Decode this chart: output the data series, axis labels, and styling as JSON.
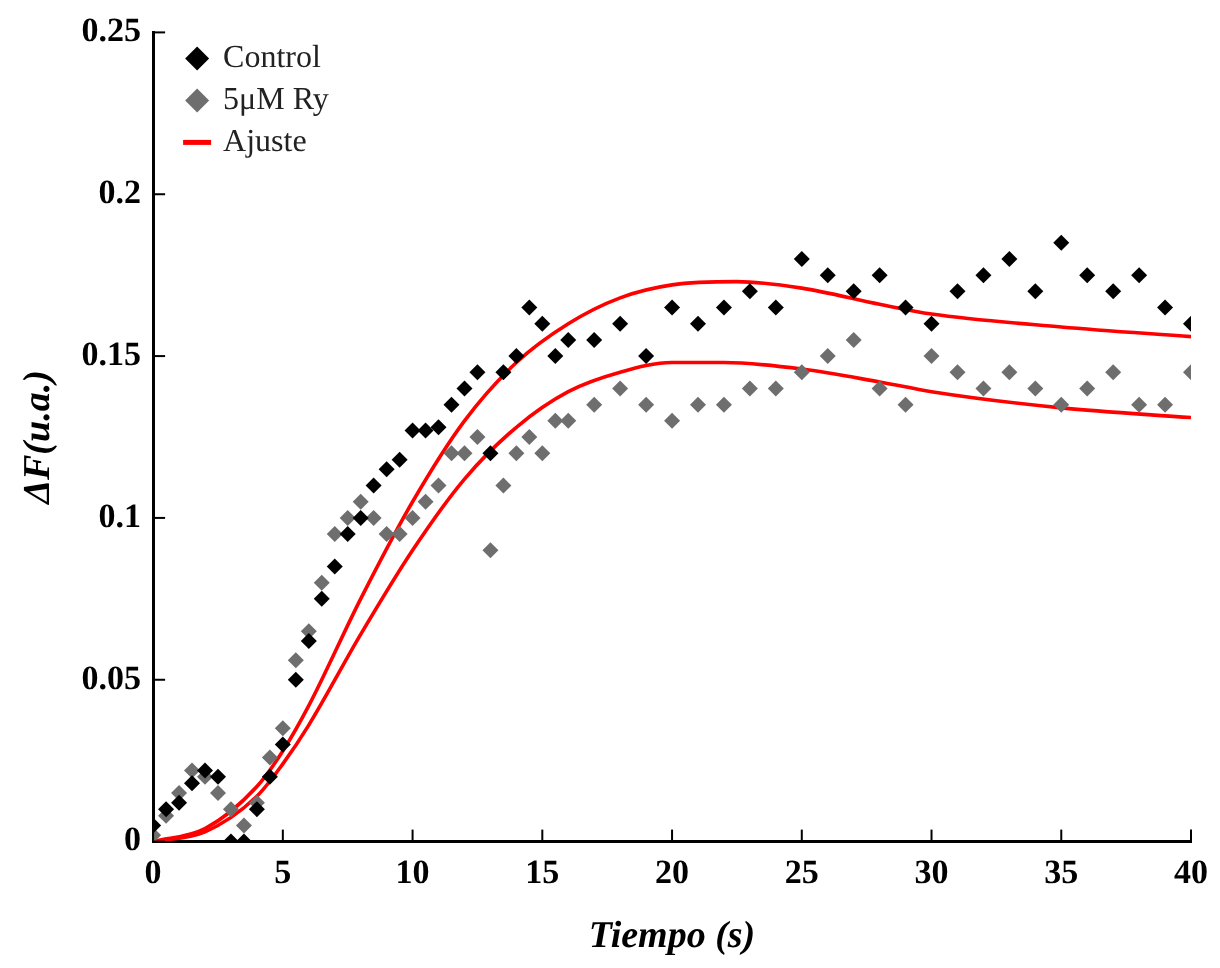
{
  "chart_data": {
    "type": "scatter",
    "xlabel": "Tiempo (s)",
    "ylabel": "ΔF(u.a.)",
    "xlim": [
      0,
      40
    ],
    "xticks": [
      0,
      5,
      10,
      15,
      20,
      25,
      30,
      35,
      40
    ],
    "ylim": [
      0,
      0.25
    ],
    "yticks": [
      0,
      0.05,
      0.1,
      0.15,
      0.2,
      0.25
    ],
    "grid": false,
    "legend": "top left",
    "marker": "diamond",
    "series": [
      {
        "name": "Control",
        "color": "#000000",
        "x": [
          0,
          0.5,
          1,
          1.5,
          2,
          2.5,
          3,
          3.5,
          4,
          4.5,
          5,
          5.5,
          6,
          6.5,
          7,
          7.5,
          8,
          8.5,
          9,
          9.5,
          10,
          10.5,
          11,
          11.5,
          12,
          12.5,
          13,
          13.5,
          14,
          14.5,
          15,
          15.5,
          16,
          17,
          18,
          19,
          20,
          21,
          22,
          23,
          24,
          25,
          26,
          27,
          28,
          29,
          30,
          31,
          32,
          33,
          34,
          35,
          36,
          37,
          38,
          39,
          40
        ],
        "values": [
          0.005,
          0.01,
          0.012,
          0.018,
          0.022,
          0.02,
          0,
          0,
          0.01,
          0.02,
          0.03,
          0.05,
          0.062,
          0.075,
          0.085,
          0.095,
          0.1,
          0.11,
          0.115,
          0.118,
          0.127,
          0.127,
          0.128,
          0.135,
          0.14,
          0.145,
          0.12,
          0.145,
          0.15,
          0.165,
          0.16,
          0.15,
          0.155,
          0.155,
          0.16,
          0.15,
          0.165,
          0.16,
          0.165,
          0.17,
          0.165,
          0.18,
          0.175,
          0.17,
          0.175,
          0.165,
          0.16,
          0.17,
          0.175,
          0.18,
          0.17,
          0.185,
          0.175,
          0.17,
          0.175,
          0.165,
          0.16
        ]
      },
      {
        "name": "5μM Ry",
        "color": "#6e6e6e",
        "x": [
          0,
          0.5,
          1,
          1.5,
          2,
          2.5,
          3,
          3.5,
          4,
          4.5,
          5,
          5.5,
          6,
          6.5,
          7,
          7.5,
          8,
          8.5,
          9,
          9.5,
          10,
          10.5,
          11,
          11.5,
          12,
          12.5,
          13,
          13.5,
          14,
          14.5,
          15,
          15.5,
          16,
          17,
          18,
          19,
          20,
          21,
          22,
          23,
          24,
          25,
          26,
          27,
          28,
          29,
          30,
          31,
          32,
          33,
          34,
          35,
          36,
          37,
          38,
          39,
          40
        ],
        "values": [
          0.002,
          0.008,
          0.015,
          0.022,
          0.02,
          0.015,
          0.01,
          0.005,
          0.012,
          0.026,
          0.035,
          0.056,
          0.065,
          0.08,
          0.095,
          0.1,
          0.105,
          0.1,
          0.095,
          0.095,
          0.1,
          0.105,
          0.11,
          0.12,
          0.12,
          0.125,
          0.09,
          0.11,
          0.12,
          0.125,
          0.12,
          0.13,
          0.13,
          0.135,
          0.14,
          0.135,
          0.13,
          0.135,
          0.135,
          0.14,
          0.14,
          0.145,
          0.15,
          0.155,
          0.14,
          0.135,
          0.15,
          0.145,
          0.14,
          0.145,
          0.14,
          0.135,
          0.14,
          0.145,
          0.135,
          0.135,
          0.145
        ]
      },
      {
        "name": "Ajuste",
        "type": "line",
        "marker": "none",
        "color": "#ff0000",
        "x": [
          0,
          2,
          4,
          5,
          6,
          8,
          10,
          12,
          14,
          16,
          18,
          20,
          22.5,
          25,
          28,
          30,
          35,
          40
        ],
        "values": [
          0,
          0.004,
          0.017,
          0.028,
          0.042,
          0.075,
          0.105,
          0.13,
          0.148,
          0.16,
          0.168,
          0.172,
          0.173,
          0.171,
          0.166,
          0.163,
          0.159,
          0.156
        ]
      },
      {
        "type": "line",
        "marker": "none",
        "color": "#ff0000",
        "x": [
          0,
          2,
          4,
          5,
          6,
          8,
          10,
          12,
          14,
          16,
          18,
          20,
          22,
          25,
          28,
          30,
          35,
          40
        ],
        "values": [
          0,
          0.003,
          0.014,
          0.024,
          0.036,
          0.064,
          0.09,
          0.112,
          0.128,
          0.139,
          0.145,
          0.148,
          0.148,
          0.146,
          0.142,
          0.139,
          0.134,
          0.131
        ]
      }
    ]
  }
}
